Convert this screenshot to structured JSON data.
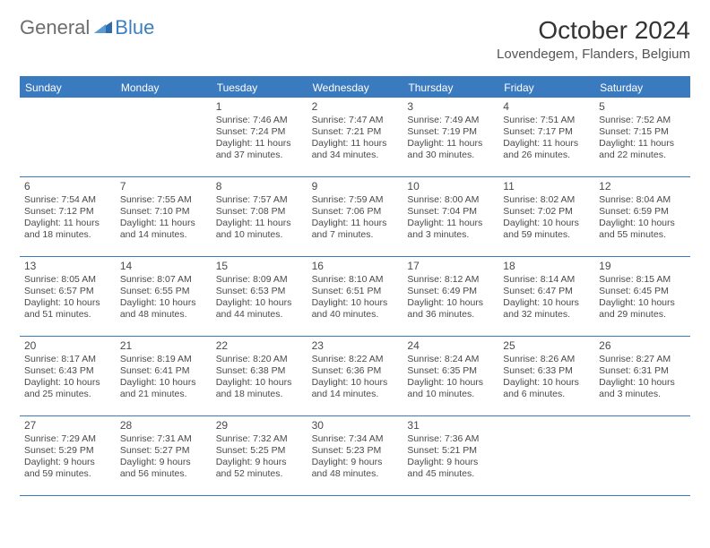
{
  "logo": {
    "text1": "General",
    "text2": "Blue"
  },
  "title": "October 2024",
  "location": "Lovendegem, Flanders, Belgium",
  "colors": {
    "header_bg": "#3a7bbf",
    "header_text": "#ffffff",
    "body_text": "#4a4a4a",
    "logo_gray": "#6d6d6d",
    "logo_blue": "#3c7fc1",
    "background": "#ffffff"
  },
  "days_of_week": [
    "Sunday",
    "Monday",
    "Tuesday",
    "Wednesday",
    "Thursday",
    "Friday",
    "Saturday"
  ],
  "weeks": [
    [
      null,
      null,
      {
        "n": "1",
        "sr": "Sunrise: 7:46 AM",
        "ss": "Sunset: 7:24 PM",
        "dl": "Daylight: 11 hours and 37 minutes."
      },
      {
        "n": "2",
        "sr": "Sunrise: 7:47 AM",
        "ss": "Sunset: 7:21 PM",
        "dl": "Daylight: 11 hours and 34 minutes."
      },
      {
        "n": "3",
        "sr": "Sunrise: 7:49 AM",
        "ss": "Sunset: 7:19 PM",
        "dl": "Daylight: 11 hours and 30 minutes."
      },
      {
        "n": "4",
        "sr": "Sunrise: 7:51 AM",
        "ss": "Sunset: 7:17 PM",
        "dl": "Daylight: 11 hours and 26 minutes."
      },
      {
        "n": "5",
        "sr": "Sunrise: 7:52 AM",
        "ss": "Sunset: 7:15 PM",
        "dl": "Daylight: 11 hours and 22 minutes."
      }
    ],
    [
      {
        "n": "6",
        "sr": "Sunrise: 7:54 AM",
        "ss": "Sunset: 7:12 PM",
        "dl": "Daylight: 11 hours and 18 minutes."
      },
      {
        "n": "7",
        "sr": "Sunrise: 7:55 AM",
        "ss": "Sunset: 7:10 PM",
        "dl": "Daylight: 11 hours and 14 minutes."
      },
      {
        "n": "8",
        "sr": "Sunrise: 7:57 AM",
        "ss": "Sunset: 7:08 PM",
        "dl": "Daylight: 11 hours and 10 minutes."
      },
      {
        "n": "9",
        "sr": "Sunrise: 7:59 AM",
        "ss": "Sunset: 7:06 PM",
        "dl": "Daylight: 11 hours and 7 minutes."
      },
      {
        "n": "10",
        "sr": "Sunrise: 8:00 AM",
        "ss": "Sunset: 7:04 PM",
        "dl": "Daylight: 11 hours and 3 minutes."
      },
      {
        "n": "11",
        "sr": "Sunrise: 8:02 AM",
        "ss": "Sunset: 7:02 PM",
        "dl": "Daylight: 10 hours and 59 minutes."
      },
      {
        "n": "12",
        "sr": "Sunrise: 8:04 AM",
        "ss": "Sunset: 6:59 PM",
        "dl": "Daylight: 10 hours and 55 minutes."
      }
    ],
    [
      {
        "n": "13",
        "sr": "Sunrise: 8:05 AM",
        "ss": "Sunset: 6:57 PM",
        "dl": "Daylight: 10 hours and 51 minutes."
      },
      {
        "n": "14",
        "sr": "Sunrise: 8:07 AM",
        "ss": "Sunset: 6:55 PM",
        "dl": "Daylight: 10 hours and 48 minutes."
      },
      {
        "n": "15",
        "sr": "Sunrise: 8:09 AM",
        "ss": "Sunset: 6:53 PM",
        "dl": "Daylight: 10 hours and 44 minutes."
      },
      {
        "n": "16",
        "sr": "Sunrise: 8:10 AM",
        "ss": "Sunset: 6:51 PM",
        "dl": "Daylight: 10 hours and 40 minutes."
      },
      {
        "n": "17",
        "sr": "Sunrise: 8:12 AM",
        "ss": "Sunset: 6:49 PM",
        "dl": "Daylight: 10 hours and 36 minutes."
      },
      {
        "n": "18",
        "sr": "Sunrise: 8:14 AM",
        "ss": "Sunset: 6:47 PM",
        "dl": "Daylight: 10 hours and 32 minutes."
      },
      {
        "n": "19",
        "sr": "Sunrise: 8:15 AM",
        "ss": "Sunset: 6:45 PM",
        "dl": "Daylight: 10 hours and 29 minutes."
      }
    ],
    [
      {
        "n": "20",
        "sr": "Sunrise: 8:17 AM",
        "ss": "Sunset: 6:43 PM",
        "dl": "Daylight: 10 hours and 25 minutes."
      },
      {
        "n": "21",
        "sr": "Sunrise: 8:19 AM",
        "ss": "Sunset: 6:41 PM",
        "dl": "Daylight: 10 hours and 21 minutes."
      },
      {
        "n": "22",
        "sr": "Sunrise: 8:20 AM",
        "ss": "Sunset: 6:38 PM",
        "dl": "Daylight: 10 hours and 18 minutes."
      },
      {
        "n": "23",
        "sr": "Sunrise: 8:22 AM",
        "ss": "Sunset: 6:36 PM",
        "dl": "Daylight: 10 hours and 14 minutes."
      },
      {
        "n": "24",
        "sr": "Sunrise: 8:24 AM",
        "ss": "Sunset: 6:35 PM",
        "dl": "Daylight: 10 hours and 10 minutes."
      },
      {
        "n": "25",
        "sr": "Sunrise: 8:26 AM",
        "ss": "Sunset: 6:33 PM",
        "dl": "Daylight: 10 hours and 6 minutes."
      },
      {
        "n": "26",
        "sr": "Sunrise: 8:27 AM",
        "ss": "Sunset: 6:31 PM",
        "dl": "Daylight: 10 hours and 3 minutes."
      }
    ],
    [
      {
        "n": "27",
        "sr": "Sunrise: 7:29 AM",
        "ss": "Sunset: 5:29 PM",
        "dl": "Daylight: 9 hours and 59 minutes."
      },
      {
        "n": "28",
        "sr": "Sunrise: 7:31 AM",
        "ss": "Sunset: 5:27 PM",
        "dl": "Daylight: 9 hours and 56 minutes."
      },
      {
        "n": "29",
        "sr": "Sunrise: 7:32 AM",
        "ss": "Sunset: 5:25 PM",
        "dl": "Daylight: 9 hours and 52 minutes."
      },
      {
        "n": "30",
        "sr": "Sunrise: 7:34 AM",
        "ss": "Sunset: 5:23 PM",
        "dl": "Daylight: 9 hours and 48 minutes."
      },
      {
        "n": "31",
        "sr": "Sunrise: 7:36 AM",
        "ss": "Sunset: 5:21 PM",
        "dl": "Daylight: 9 hours and 45 minutes."
      },
      null,
      null
    ]
  ]
}
